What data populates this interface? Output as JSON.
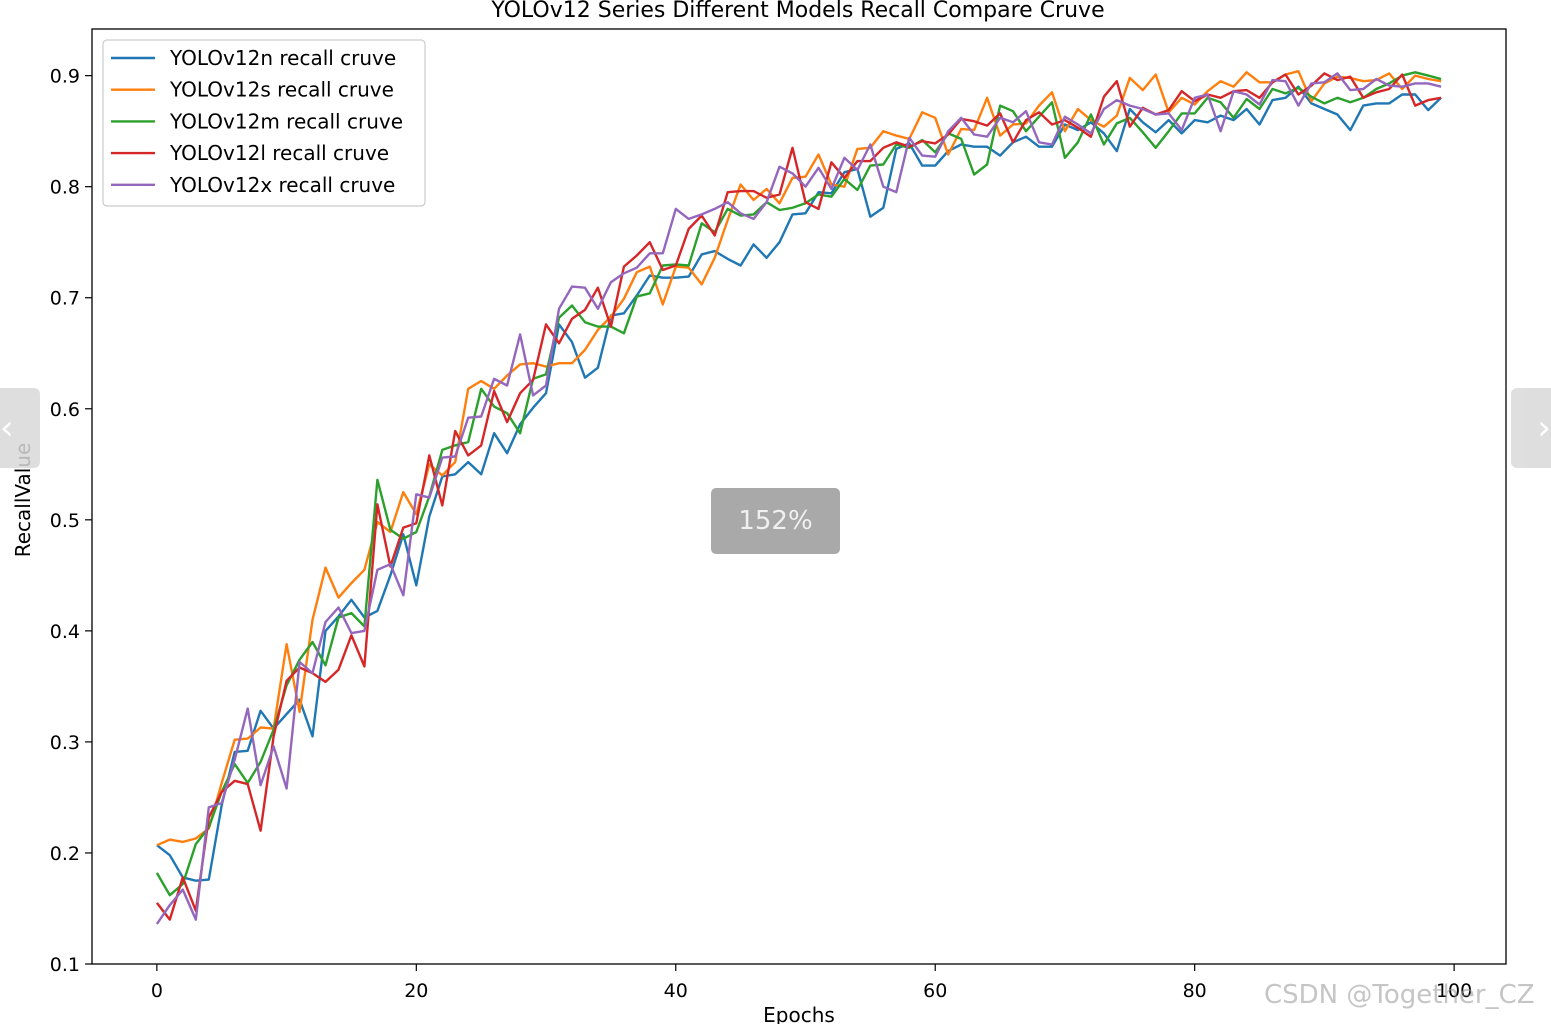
{
  "chart_data": {
    "type": "line",
    "title": "YOLOv12 Series Different Models Recall Compare Cruve",
    "xlabel": "Epochs",
    "ylabel": "RecallValue",
    "xlim": [
      -5,
      104
    ],
    "ylim": [
      0.1,
      0.942
    ],
    "xticks": [
      0,
      20,
      40,
      60,
      80,
      100
    ],
    "yticks": [
      0.1,
      0.2,
      0.3,
      0.4,
      0.5,
      0.6,
      0.7,
      0.8,
      0.9
    ],
    "grid": false,
    "legend_position": "upper-left",
    "x": [
      0,
      1,
      2,
      3,
      4,
      5,
      6,
      7,
      8,
      9,
      10,
      11,
      12,
      13,
      14,
      15,
      16,
      17,
      18,
      19,
      20,
      21,
      22,
      23,
      24,
      25,
      26,
      27,
      28,
      29,
      30,
      31,
      32,
      33,
      34,
      35,
      36,
      37,
      38,
      39,
      40,
      41,
      42,
      43,
      44,
      45,
      46,
      47,
      48,
      49,
      50,
      51,
      52,
      53,
      54,
      55,
      56,
      57,
      58,
      59,
      60,
      61,
      62,
      63,
      64,
      65,
      66,
      67,
      68,
      69,
      70,
      71,
      72,
      73,
      74,
      75,
      76,
      77,
      78,
      79,
      80,
      81,
      82,
      83,
      84,
      85,
      86,
      87,
      88,
      89,
      90,
      91,
      92,
      93,
      94,
      95,
      96,
      97,
      98,
      99
    ],
    "series": [
      {
        "name": "YOLOv12n recall cruve",
        "color": "#1f77b4",
        "values": [
          0.207,
          0.198,
          0.178,
          0.175,
          0.176,
          0.243,
          0.291,
          0.292,
          0.328,
          0.312,
          0.325,
          0.338,
          0.305,
          0.4,
          0.413,
          0.428,
          0.412,
          0.418,
          0.45,
          0.487,
          0.441,
          0.503,
          0.539,
          0.541,
          0.552,
          0.541,
          0.578,
          0.56,
          0.586,
          0.601,
          0.614,
          0.676,
          0.66,
          0.628,
          0.637,
          0.684,
          0.686,
          0.702,
          0.72,
          0.718,
          0.718,
          0.719,
          0.739,
          0.742,
          0.735,
          0.729,
          0.748,
          0.736,
          0.75,
          0.775,
          0.776,
          0.795,
          0.794,
          0.813,
          0.816,
          0.773,
          0.781,
          0.834,
          0.839,
          0.819,
          0.819,
          0.832,
          0.838,
          0.836,
          0.836,
          0.828,
          0.84,
          0.845,
          0.836,
          0.836,
          0.856,
          0.851,
          0.858,
          0.848,
          0.832,
          0.87,
          0.858,
          0.849,
          0.86,
          0.848,
          0.86,
          0.858,
          0.864,
          0.86,
          0.87,
          0.856,
          0.878,
          0.88,
          0.89,
          0.875,
          0.87,
          0.865,
          0.851,
          0.873,
          0.875,
          0.875,
          0.883,
          0.883,
          0.869,
          0.88
        ]
      },
      {
        "name": "YOLOv12s recall cruve",
        "color": "#ff7f0e",
        "values": [
          0.207,
          0.212,
          0.21,
          0.213,
          0.222,
          0.263,
          0.302,
          0.303,
          0.313,
          0.312,
          0.388,
          0.327,
          0.41,
          0.457,
          0.43,
          0.443,
          0.455,
          0.498,
          0.489,
          0.525,
          0.505,
          0.55,
          0.54,
          0.552,
          0.618,
          0.625,
          0.618,
          0.63,
          0.64,
          0.641,
          0.638,
          0.641,
          0.641,
          0.653,
          0.671,
          0.683,
          0.699,
          0.723,
          0.728,
          0.694,
          0.728,
          0.727,
          0.712,
          0.736,
          0.77,
          0.802,
          0.788,
          0.798,
          0.785,
          0.808,
          0.809,
          0.829,
          0.802,
          0.8,
          0.834,
          0.835,
          0.85,
          0.846,
          0.843,
          0.867,
          0.862,
          0.829,
          0.852,
          0.851,
          0.88,
          0.846,
          0.856,
          0.857,
          0.873,
          0.885,
          0.85,
          0.87,
          0.86,
          0.854,
          0.864,
          0.898,
          0.887,
          0.901,
          0.867,
          0.88,
          0.874,
          0.886,
          0.895,
          0.89,
          0.903,
          0.894,
          0.894,
          0.901,
          0.904,
          0.877,
          0.893,
          0.899,
          0.898,
          0.895,
          0.896,
          0.902,
          0.888,
          0.9,
          0.897,
          0.895
        ]
      },
      {
        "name": "YOLOv12m recall cruve",
        "color": "#2ca02c",
        "values": [
          0.182,
          0.162,
          0.172,
          0.208,
          0.223,
          0.255,
          0.28,
          0.263,
          0.282,
          0.311,
          0.351,
          0.374,
          0.39,
          0.369,
          0.412,
          0.416,
          0.404,
          0.536,
          0.491,
          0.483,
          0.489,
          0.521,
          0.563,
          0.567,
          0.57,
          0.618,
          0.602,
          0.596,
          0.578,
          0.627,
          0.631,
          0.682,
          0.693,
          0.678,
          0.674,
          0.674,
          0.668,
          0.701,
          0.704,
          0.729,
          0.73,
          0.729,
          0.767,
          0.759,
          0.78,
          0.774,
          0.775,
          0.786,
          0.779,
          0.781,
          0.785,
          0.793,
          0.791,
          0.807,
          0.797,
          0.819,
          0.82,
          0.838,
          0.835,
          0.842,
          0.831,
          0.848,
          0.843,
          0.811,
          0.82,
          0.873,
          0.868,
          0.85,
          0.863,
          0.876,
          0.826,
          0.84,
          0.865,
          0.838,
          0.857,
          0.862,
          0.849,
          0.835,
          0.85,
          0.866,
          0.866,
          0.88,
          0.876,
          0.862,
          0.879,
          0.87,
          0.888,
          0.884,
          0.889,
          0.881,
          0.875,
          0.88,
          0.876,
          0.88,
          0.888,
          0.893,
          0.9,
          0.903,
          0.9,
          0.897
        ]
      },
      {
        "name": "YOLOv12l recall cruve",
        "color": "#d62728",
        "values": [
          0.155,
          0.14,
          0.178,
          0.148,
          0.232,
          0.255,
          0.265,
          0.262,
          0.22,
          0.305,
          0.355,
          0.367,
          0.362,
          0.354,
          0.365,
          0.396,
          0.368,
          0.514,
          0.458,
          0.493,
          0.497,
          0.558,
          0.513,
          0.58,
          0.558,
          0.567,
          0.616,
          0.588,
          0.614,
          0.626,
          0.676,
          0.659,
          0.681,
          0.689,
          0.709,
          0.674,
          0.728,
          0.738,
          0.75,
          0.725,
          0.729,
          0.762,
          0.774,
          0.756,
          0.795,
          0.796,
          0.796,
          0.79,
          0.793,
          0.835,
          0.786,
          0.78,
          0.822,
          0.808,
          0.823,
          0.823,
          0.835,
          0.84,
          0.836,
          0.841,
          0.839,
          0.847,
          0.861,
          0.859,
          0.855,
          0.866,
          0.84,
          0.86,
          0.867,
          0.856,
          0.86,
          0.853,
          0.845,
          0.881,
          0.895,
          0.854,
          0.871,
          0.865,
          0.869,
          0.886,
          0.877,
          0.883,
          0.88,
          0.886,
          0.887,
          0.88,
          0.894,
          0.901,
          0.883,
          0.891,
          0.902,
          0.896,
          0.899,
          0.88,
          0.885,
          0.888,
          0.901,
          0.873,
          0.878,
          0.88
        ]
      },
      {
        "name": "YOLOv12x recall cruve",
        "color": "#9467bd",
        "values": [
          0.136,
          0.153,
          0.167,
          0.14,
          0.241,
          0.245,
          0.284,
          0.33,
          0.261,
          0.296,
          0.258,
          0.372,
          0.362,
          0.408,
          0.421,
          0.398,
          0.4,
          0.455,
          0.46,
          0.432,
          0.523,
          0.52,
          0.556,
          0.557,
          0.592,
          0.593,
          0.627,
          0.621,
          0.667,
          0.612,
          0.621,
          0.69,
          0.71,
          0.709,
          0.69,
          0.714,
          0.722,
          0.727,
          0.74,
          0.74,
          0.78,
          0.771,
          0.775,
          0.78,
          0.786,
          0.776,
          0.771,
          0.786,
          0.818,
          0.812,
          0.8,
          0.817,
          0.798,
          0.826,
          0.815,
          0.838,
          0.8,
          0.795,
          0.844,
          0.828,
          0.827,
          0.85,
          0.862,
          0.847,
          0.845,
          0.862,
          0.858,
          0.868,
          0.84,
          0.838,
          0.863,
          0.856,
          0.848,
          0.87,
          0.878,
          0.873,
          0.87,
          0.865,
          0.866,
          0.851,
          0.88,
          0.883,
          0.85,
          0.886,
          0.883,
          0.874,
          0.896,
          0.895,
          0.873,
          0.893,
          0.894,
          0.902,
          0.887,
          0.888,
          0.897,
          0.891,
          0.89,
          0.893,
          0.893,
          0.89
        ]
      }
    ]
  },
  "overlay": {
    "zoom_label": "152%",
    "nav_prev_glyph": "‹",
    "nav_next_glyph": "›",
    "watermark": "CSDN @Together_CZ"
  }
}
